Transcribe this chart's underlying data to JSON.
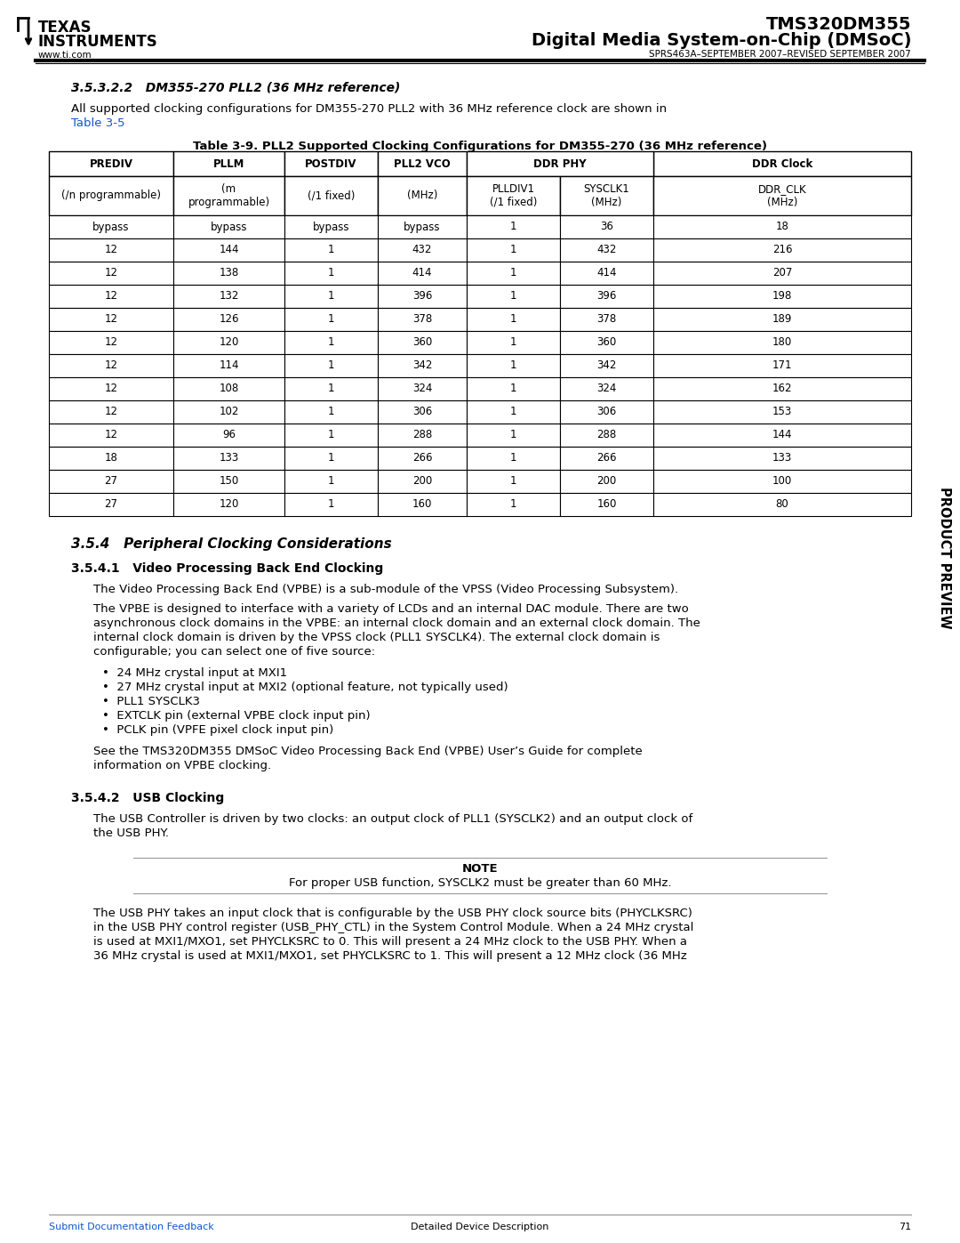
{
  "page_title1": "TMS320DM355",
  "page_title2": "Digital Media System-on-Chip (DMSoC)",
  "page_subtitle": "SPRS463A–SEPTEMBER 2007–REVISED SEPTEMBER 2007",
  "section_heading": "3.5.3.2.2   DM355-270 PLL2 (36 MHz reference)",
  "intro_text": "All supported clocking configurations for DM355-270 PLL2 with 36 MHz reference clock are shown in",
  "intro_link": "Table 3-5",
  "table_title": "Table 3-9. PLL2 Supported Clocking Configurations for DM355-270 (36 MHz reference)",
  "table_data": [
    [
      "bypass",
      "bypass",
      "bypass",
      "bypass",
      "1",
      "36",
      "18"
    ],
    [
      "12",
      "144",
      "1",
      "432",
      "1",
      "432",
      "216"
    ],
    [
      "12",
      "138",
      "1",
      "414",
      "1",
      "414",
      "207"
    ],
    [
      "12",
      "132",
      "1",
      "396",
      "1",
      "396",
      "198"
    ],
    [
      "12",
      "126",
      "1",
      "378",
      "1",
      "378",
      "189"
    ],
    [
      "12",
      "120",
      "1",
      "360",
      "1",
      "360",
      "180"
    ],
    [
      "12",
      "114",
      "1",
      "342",
      "1",
      "342",
      "171"
    ],
    [
      "12",
      "108",
      "1",
      "324",
      "1",
      "324",
      "162"
    ],
    [
      "12",
      "102",
      "1",
      "306",
      "1",
      "306",
      "153"
    ],
    [
      "12",
      "96",
      "1",
      "288",
      "1",
      "288",
      "144"
    ],
    [
      "18",
      "133",
      "1",
      "266",
      "1",
      "266",
      "133"
    ],
    [
      "27",
      "150",
      "1",
      "200",
      "1",
      "200",
      "100"
    ],
    [
      "27",
      "120",
      "1",
      "160",
      "1",
      "160",
      "80"
    ]
  ],
  "section354_heading": "3.5.4   Peripheral Clocking Considerations",
  "section3541_heading": "3.5.4.1   Video Processing Back End Clocking",
  "para1": "The Video Processing Back End (VPBE) is a sub-module of the VPSS (Video Processing Subsystem).",
  "para2_lines": [
    "The VPBE is designed to interface with a variety of LCDs and an internal DAC module. There are two",
    "asynchronous clock domains in the VPBE: an internal clock domain and an external clock domain. The",
    "internal clock domain is driven by the VPSS clock (PLL1 SYSCLK4). The external clock domain is",
    "configurable; you can select one of five source:"
  ],
  "bullets": [
    "24 MHz crystal input at MXI1",
    "27 MHz crystal input at MXI2 (optional feature, not typically used)",
    "PLL1 SYSCLK3",
    "EXTCLK pin (external VPBE clock input pin)",
    "PCLK pin (VPFE pixel clock input pin)"
  ],
  "para3_lines": [
    "See the TMS320DM355 DMSoC Video Processing Back End (VPBE) User’s Guide for complete",
    "information on VPBE clocking."
  ],
  "section3542_heading": "3.5.4.2   USB Clocking",
  "para4_lines": [
    "The USB Controller is driven by two clocks: an output clock of PLL1 (SYSCLK2) and an output clock of",
    "the USB PHY."
  ],
  "note_title": "NOTE",
  "note_text": "For proper USB function, SYSCLK2 must be greater than 60 MHz.",
  "para5_lines": [
    "The USB PHY takes an input clock that is configurable by the USB PHY clock source bits (PHYCLKSRC)",
    "in the USB PHY control register (USB_PHY_CTL) in the System Control Module. When a 24 MHz crystal",
    "is used at MXI1/MXO1, set PHYCLKSRC to 0. This will present a 24 MHz clock to the USB PHY. When a",
    "36 MHz crystal is used at MXI1/MXO1, set PHYCLKSRC to 1. This will present a 12 MHz clock (36 MHz"
  ],
  "footer_left": "Submit Documentation Feedback",
  "footer_right": "Detailed Device Description",
  "footer_page": "71",
  "side_text": "PRODUCT PREVIEW",
  "bg_color": "#ffffff",
  "text_color": "#000000",
  "blue_color": "#1155cc",
  "header_line_color": "#000000",
  "table_border_color": "#000000"
}
